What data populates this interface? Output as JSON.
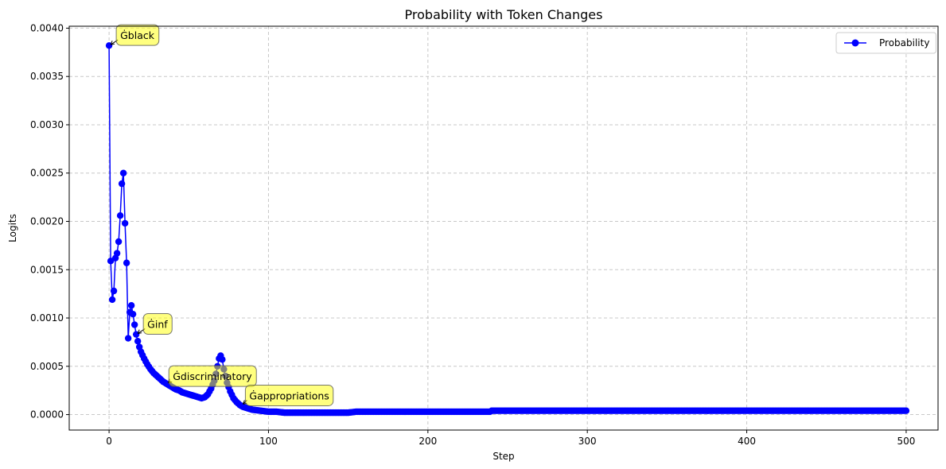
{
  "chart_data": {
    "type": "line",
    "title": "Probability with Token Changes",
    "xlabel": "Step",
    "ylabel": "Logits",
    "xlim": [
      -25,
      520
    ],
    "ylim": [
      -0.00016,
      0.00402
    ],
    "xticks": [
      0,
      100,
      200,
      300,
      400,
      500
    ],
    "xtick_labels": [
      "0",
      "100",
      "200",
      "300",
      "400",
      "500"
    ],
    "yticks": [
      0.0,
      0.0005,
      0.001,
      0.0015,
      0.002,
      0.0025,
      0.003,
      0.0035,
      0.004
    ],
    "ytick_labels": [
      "0.0000",
      "0.0005",
      "0.0010",
      "0.0015",
      "0.0020",
      "0.0025",
      "0.0030",
      "0.0035",
      "0.0040"
    ],
    "grid": true,
    "legend_position": "top-right",
    "series": [
      {
        "name": "Probability",
        "color": "#0000ff",
        "marker": "circle",
        "x": [
          0,
          1,
          2,
          3,
          4,
          5,
          6,
          7,
          8,
          9,
          10,
          11,
          12,
          13,
          14,
          15,
          16,
          17,
          18,
          19,
          20,
          22,
          24,
          26,
          28,
          30,
          32,
          34,
          36,
          38,
          40,
          42,
          44,
          46,
          48,
          50,
          52,
          54,
          56,
          58,
          60,
          62,
          64,
          66,
          67,
          68,
          69,
          70,
          71,
          72,
          73,
          74,
          76,
          78,
          80,
          82,
          84,
          86,
          88,
          90,
          95,
          100,
          105,
          110,
          120,
          130,
          140,
          150,
          155,
          160,
          170,
          180,
          190,
          200,
          210,
          220,
          230,
          239,
          240,
          250,
          260,
          280,
          300,
          320,
          340,
          360,
          380,
          400,
          420,
          440,
          460,
          480,
          500
        ],
        "y": [
          0.00382,
          0.00159,
          0.00119,
          0.00128,
          0.00162,
          0.00167,
          0.00179,
          0.00206,
          0.00239,
          0.0025,
          0.00198,
          0.00157,
          0.00079,
          0.00106,
          0.00113,
          0.00104,
          0.00093,
          0.00083,
          0.00076,
          0.0007,
          0.00065,
          0.00058,
          0.00052,
          0.00047,
          0.00043,
          0.0004,
          0.00037,
          0.00034,
          0.00032,
          0.0003,
          0.00028,
          0.00026,
          0.00025,
          0.00023,
          0.00022,
          0.00021,
          0.0002,
          0.00019,
          0.00018,
          0.00017,
          0.00018,
          0.00021,
          0.00027,
          0.00035,
          0.00042,
          0.0005,
          0.00058,
          0.00061,
          0.00057,
          0.00047,
          0.0004,
          0.00033,
          0.00024,
          0.00017,
          0.00013,
          0.0001,
          8e-05,
          7e-05,
          6e-05,
          5e-05,
          4e-05,
          3e-05,
          3e-05,
          2e-05,
          2e-05,
          2e-05,
          2e-05,
          2e-05,
          3e-05,
          3e-05,
          3e-05,
          3e-05,
          3e-05,
          3e-05,
          3e-05,
          3e-05,
          3e-05,
          3e-05,
          4e-05,
          4e-05,
          4e-05,
          4e-05,
          4e-05,
          4e-05,
          4e-05,
          4e-05,
          4e-05,
          4e-05,
          4e-05,
          4e-05,
          4e-05,
          4e-05,
          4e-05
        ]
      }
    ],
    "annotations": [
      {
        "text": "Ġblack",
        "x": 0,
        "y": 0.00382,
        "label_x": 4,
        "label_y": 0.00392
      },
      {
        "text": "Ġinf",
        "x": 17,
        "y": 0.00083,
        "label_x": 21,
        "label_y": 0.00093
      },
      {
        "text": "Ġdiscriminatory",
        "x": 36,
        "y": 0.00032,
        "label_x": 37,
        "label_y": 0.00039
      },
      {
        "text": "Ġappropriations",
        "x": 83,
        "y": 0.0001,
        "label_x": 85,
        "label_y": 0.00019
      }
    ],
    "annotation_style": {
      "fill": "#ffff00",
      "opacity": 0.5,
      "edge": "#555555"
    }
  }
}
